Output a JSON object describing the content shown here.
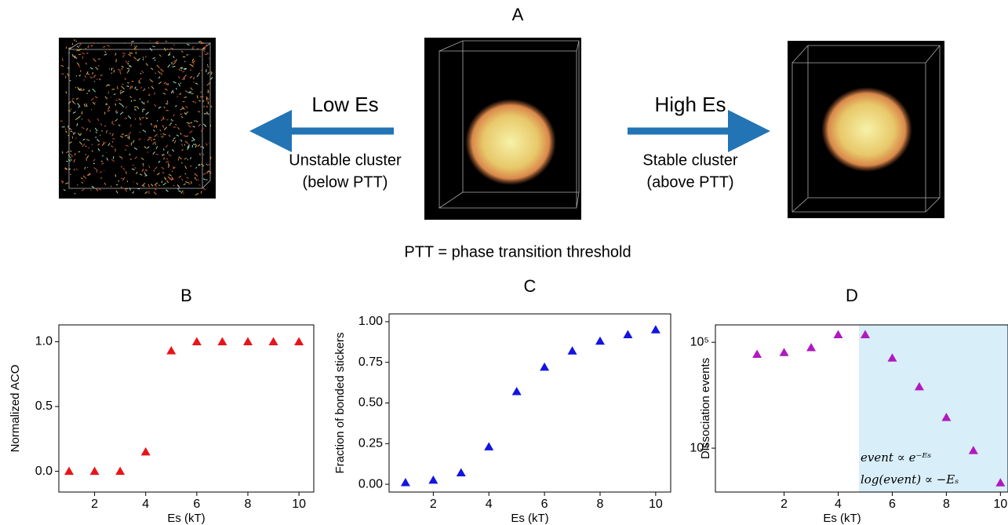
{
  "panel_a": {
    "label": "A",
    "left": {
      "label": "Low Es",
      "caption": [
        "Unstable cluster",
        "(below PTT)"
      ]
    },
    "right": {
      "label": "High Es",
      "caption": [
        "Stable cluster",
        "(above PTT)"
      ]
    },
    "footnote": "PTT = phase transition threshold"
  },
  "chart_data": [
    {
      "type": "scatter",
      "title": "B",
      "x_label": "Es (kT)",
      "y_label": "Normalized ACO",
      "color": "#e8141b",
      "x": [
        1,
        2,
        3,
        4,
        5,
        6,
        7,
        8,
        9,
        10
      ],
      "values": [
        0,
        0,
        0,
        0.15,
        0.93,
        1,
        1,
        1,
        1,
        1
      ],
      "xlim": [
        0.6,
        10.58
      ],
      "ylim": [
        -0.16,
        1.13
      ],
      "xticks": [
        2,
        4,
        6,
        8,
        10
      ],
      "yticks": [
        {
          "value": 0,
          "label": "0.0"
        },
        0.5,
        {
          "value": 1,
          "label": "1.0"
        }
      ]
    },
    {
      "type": "scatter",
      "title": "C",
      "x_label": "Es (kT)",
      "y_label": "Fraction of bonded stickers",
      "color": "#1414e0",
      "x": [
        1,
        2,
        3,
        4,
        5,
        6,
        7,
        8,
        9,
        10
      ],
      "values": [
        0.01,
        0.025,
        0.07,
        0.23,
        0.57,
        0.72,
        0.82,
        0.88,
        0.92,
        0.95
      ],
      "xlim": [
        0.41,
        10.54
      ],
      "ylim": [
        -0.048,
        1.048
      ],
      "xticks": [
        2,
        4,
        6,
        8,
        10
      ],
      "yticks": [
        {
          "value": 0,
          "label": "0.00"
        },
        0.25,
        {
          "value": 0.5,
          "label": "0.50"
        },
        0.75,
        {
          "value": 1,
          "label": "1.00"
        }
      ]
    },
    {
      "type": "scatter",
      "title": "D",
      "x_label": "Es (kT)",
      "y_label": "Dissociation events",
      "color": "#b019c0",
      "x": [
        1,
        2,
        3,
        4,
        5,
        6,
        7,
        8,
        9,
        10
      ],
      "values": [
        77000,
        80000,
        89000,
        118000,
        118000,
        71000,
        38000,
        19500,
        9500,
        4700
      ],
      "xlim": [
        -0.54,
        10.28
      ],
      "ylim": [
        3850,
        146000
      ],
      "log_y": true,
      "highlight_span": [
        4.77,
        10.28
      ],
      "highlight_color": "#d8eef8",
      "annotations": [
        "event ∝ e⁻ᴱˢ",
        "log(event) ∝ −Eₛ"
      ],
      "xticks": [
        2,
        4,
        6,
        8,
        10
      ],
      "yticks": [
        {
          "value": 10000,
          "label": "10⁴"
        },
        {
          "value": 100000,
          "label": "10⁵"
        }
      ]
    }
  ]
}
